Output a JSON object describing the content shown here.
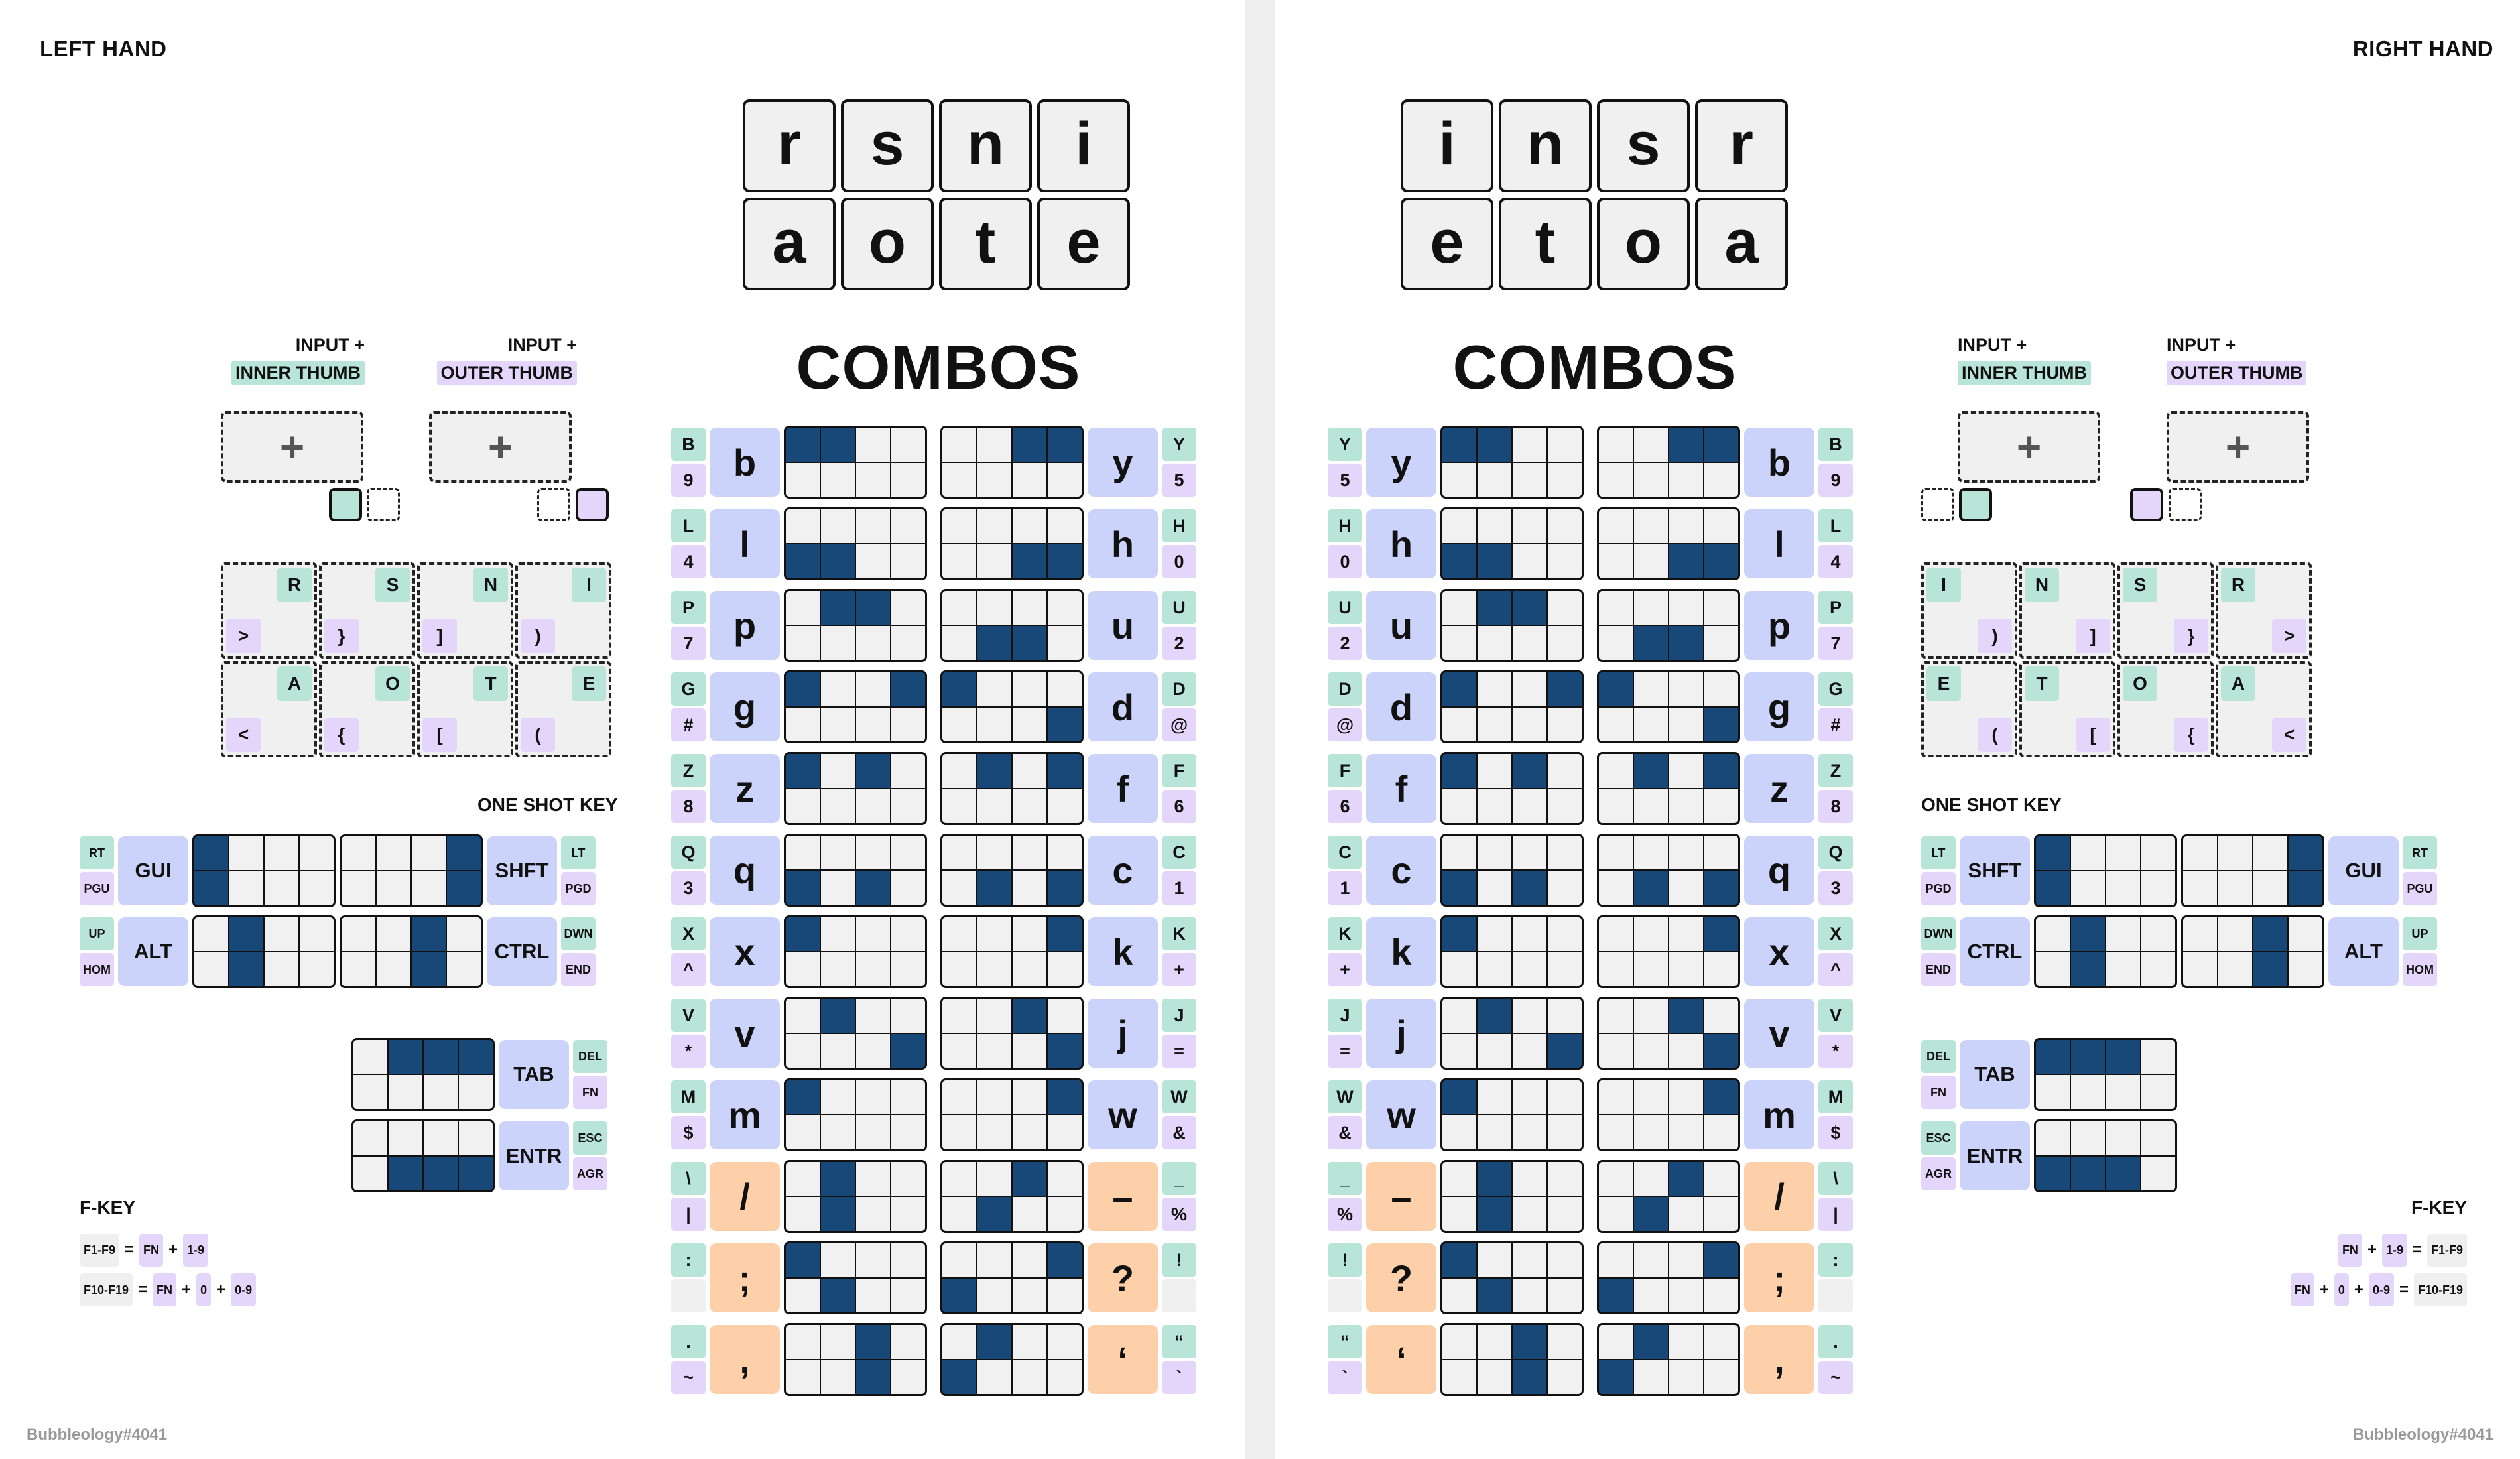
{
  "footer": "Bubbleology#4041",
  "combos_title": "COMBOS",
  "input_plus": "INPUT +",
  "inner_thumb": "INNER THUMB",
  "outer_thumb": "OUTER THUMB",
  "plus": "+",
  "one_shot_key": "ONE SHOT KEY",
  "fkey_title": "F-KEY",
  "colors": {
    "accent_blue": "#174877",
    "letter_bg": "#ccd3fa",
    "punct_bg": "#fdd0a9",
    "teal": "#b8e5d8",
    "lavender": "#e4d5fb"
  },
  "left": {
    "title": "LEFT HAND",
    "bigkeys": [
      "r",
      "s",
      "n",
      "i",
      "a",
      "o",
      "t",
      "e"
    ],
    "home": [
      {
        "letter": "R",
        "sym": ">"
      },
      {
        "letter": "S",
        "sym": "}"
      },
      {
        "letter": "N",
        "sym": "]"
      },
      {
        "letter": "I",
        "sym": ")"
      },
      {
        "letter": "A",
        "sym": "<"
      },
      {
        "letter": "O",
        "sym": "{"
      },
      {
        "letter": "T",
        "sym": "["
      },
      {
        "letter": "E",
        "sym": "("
      }
    ],
    "mods": [
      {
        "label": "GUI",
        "top": "RT",
        "bottom": "PGU"
      },
      {
        "label": "ALT",
        "top": "UP",
        "bottom": "HOM"
      },
      {
        "label": "SHFT",
        "top": "LT",
        "bottom": "PGD"
      },
      {
        "label": "CTRL",
        "top": "DWN",
        "bottom": "END"
      },
      {
        "label": "TAB",
        "top": "DEL",
        "bottom": "FN"
      },
      {
        "label": "ENTR",
        "top": "ESC",
        "bottom": "AGR"
      }
    ],
    "fkeys": [
      {
        "parts": [
          "F1-F9",
          "=",
          "FN",
          "+",
          "1-9"
        ]
      },
      {
        "parts": [
          "F10-F19",
          "=",
          "FN",
          "+",
          "0",
          "+",
          "0-9"
        ]
      }
    ]
  },
  "right": {
    "title": "RIGHT HAND",
    "bigkeys": [
      "i",
      "n",
      "s",
      "r",
      "e",
      "t",
      "o",
      "a"
    ],
    "home": [
      {
        "letter": "I",
        "sym": ")"
      },
      {
        "letter": "N",
        "sym": "]"
      },
      {
        "letter": "S",
        "sym": "}"
      },
      {
        "letter": "R",
        "sym": ">"
      },
      {
        "letter": "E",
        "sym": "("
      },
      {
        "letter": "T",
        "sym": "["
      },
      {
        "letter": "O",
        "sym": "{"
      },
      {
        "letter": "A",
        "sym": "<"
      }
    ],
    "mods": [
      {
        "label": "SHFT",
        "top": "LT",
        "bottom": "PGD"
      },
      {
        "label": "CTRL",
        "top": "DWN",
        "bottom": "END"
      },
      {
        "label": "GUI",
        "top": "RT",
        "bottom": "PGU"
      },
      {
        "label": "ALT",
        "top": "UP",
        "bottom": "HOM"
      },
      {
        "label": "TAB",
        "top": "DEL",
        "bottom": "FN"
      },
      {
        "label": "ENTR",
        "top": "ESC",
        "bottom": "AGR"
      }
    ],
    "fkeys": [
      {
        "parts": [
          "FN",
          "+",
          "1-9",
          "=",
          "F1-F9"
        ]
      },
      {
        "parts": [
          "FN",
          "+",
          "0",
          "+",
          "0-9",
          "=",
          "F10-F19"
        ]
      }
    ]
  },
  "combos": [
    {
      "l": "b",
      "ls": [
        "B",
        "9"
      ],
      "r": "y",
      "rs": [
        "Y",
        "5"
      ],
      "lt": "v",
      "rt": "v"
    },
    {
      "l": "l",
      "ls": [
        "L",
        "4"
      ],
      "r": "h",
      "rs": [
        "H",
        "0"
      ],
      "lt": "v",
      "rt": "v"
    },
    {
      "l": "p",
      "ls": [
        "P",
        "7"
      ],
      "r": "u",
      "rs": [
        "U",
        "2"
      ],
      "lt": "v",
      "rt": "v"
    },
    {
      "l": "g",
      "ls": [
        "G",
        "#"
      ],
      "r": "d",
      "rs": [
        "D",
        "@"
      ],
      "lt": "v",
      "rt": "v"
    },
    {
      "l": "z",
      "ls": [
        "Z",
        "8"
      ],
      "r": "f",
      "rs": [
        "F",
        "6"
      ],
      "lt": "v",
      "rt": "v"
    },
    {
      "l": "q",
      "ls": [
        "Q",
        "3"
      ],
      "r": "c",
      "rs": [
        "C",
        "1"
      ],
      "lt": "v",
      "rt": "v"
    },
    {
      "l": "x",
      "ls": [
        "X",
        "^"
      ],
      "r": "k",
      "rs": [
        "K",
        "+"
      ],
      "lt": "v",
      "rt": "v"
    },
    {
      "l": "v",
      "ls": [
        "V",
        "*"
      ],
      "r": "j",
      "rs": [
        "J",
        "="
      ],
      "lt": "v",
      "rt": "v"
    },
    {
      "l": "m",
      "ls": [
        "M",
        "$"
      ],
      "r": "w",
      "rs": [
        "W",
        "&"
      ],
      "lt": "v",
      "rt": "v"
    },
    {
      "l": "/",
      "ls": [
        "\\",
        "|"
      ],
      "r": "–",
      "rs": [
        "_",
        "%"
      ],
      "lt": "o",
      "rt": "o"
    },
    {
      "l": ";",
      "ls": [
        ":",
        ""
      ],
      "r": "?",
      "rs": [
        "!",
        ""
      ],
      "lt": "o",
      "rt": "o"
    },
    {
      "l": ",",
      "ls": [
        ".",
        "~"
      ],
      "r": "‘",
      "rs": [
        "“",
        "`"
      ],
      "lt": "o",
      "rt": "o"
    }
  ]
}
